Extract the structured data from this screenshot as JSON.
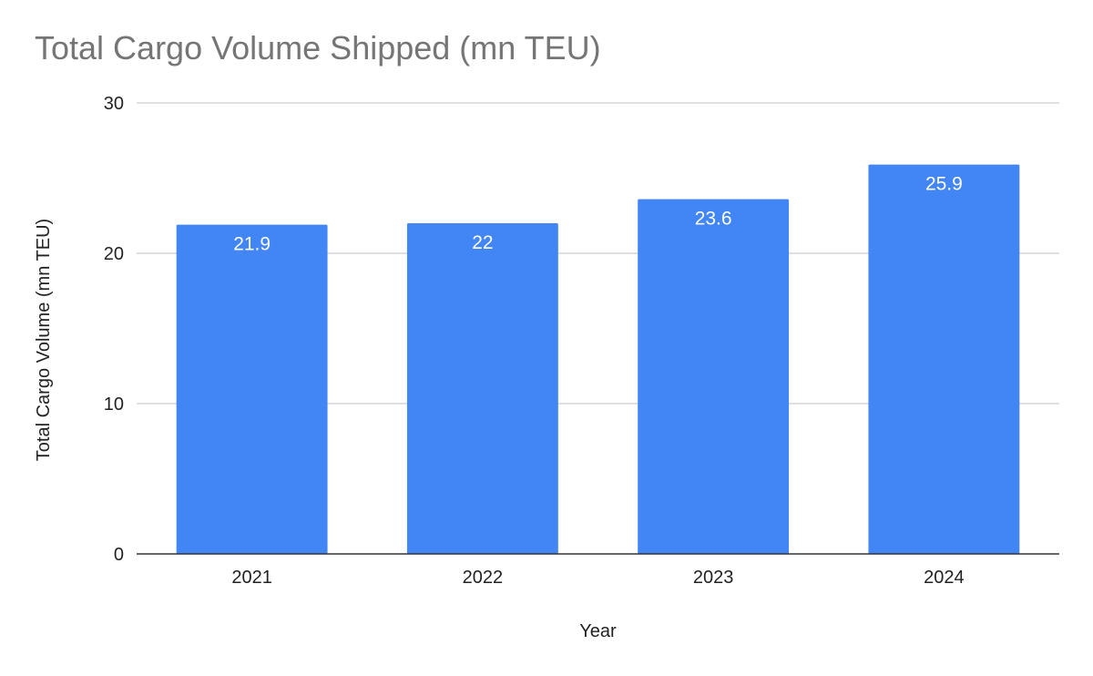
{
  "chart_data": {
    "type": "bar",
    "title": "Total Cargo Volume Shipped (mn TEU)",
    "xlabel": "Year",
    "ylabel": "Total Cargo Volume (mn TEU)",
    "categories": [
      "2021",
      "2022",
      "2023",
      "2024"
    ],
    "values": [
      21.9,
      22,
      23.6,
      25.9
    ],
    "data_labels": [
      "21.9",
      "22",
      "23.6",
      "25.9"
    ],
    "ylim": [
      0,
      30
    ],
    "yticks": [
      0,
      10,
      20,
      30
    ],
    "grid": true,
    "legend": "none",
    "bar_color": "#4285f4",
    "gridline_color": "#cccccc",
    "axis_color": "#333333"
  }
}
